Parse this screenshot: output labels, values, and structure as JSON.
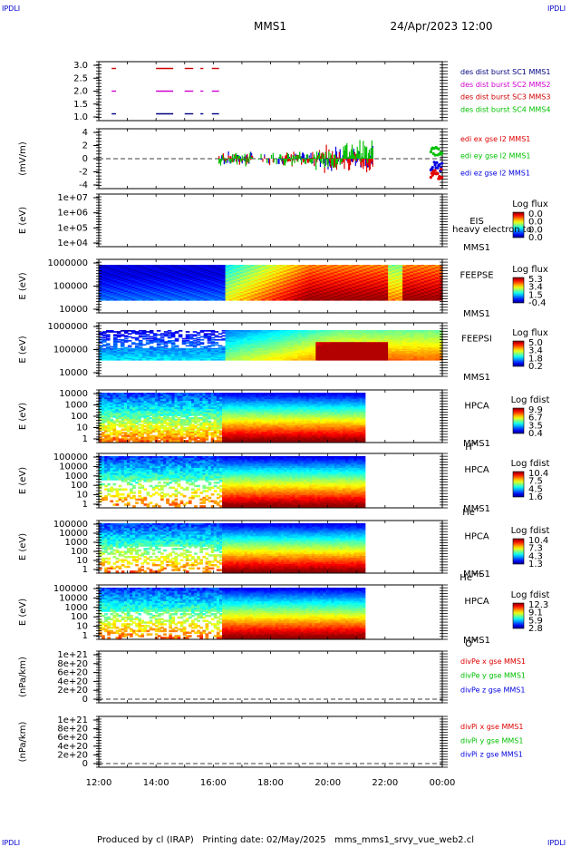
{
  "header": {
    "corner_left": "IPDLI",
    "corner_right": "IPDLI",
    "mission": "MMS1",
    "datetime": "24/Apr/2023 12:00"
  },
  "footer": {
    "corner_left": "IPDLI",
    "corner_right": "IPDLI",
    "text": "Produced by cl (IRAP)   Printing date: 02/May/2025   mms_mms1_srvy_vue_web2.cl"
  },
  "colors": {
    "c1": "#000080",
    "c2": "#d000d0",
    "c3": "#d00000",
    "c4": "#00c000",
    "ex": "#e00000",
    "ey": "#00c000",
    "ez": "#0000e0"
  },
  "chart_data": [
    {
      "id": "burst",
      "type": "line",
      "y_ticks": [
        "3.0",
        "2.5",
        "2.0",
        "1.5",
        "1.0"
      ],
      "ylim": [
        0.7,
        3.3
      ],
      "legend": [
        {
          "text": "des dist burst SC1 MMS1",
          "color": "c1"
        },
        {
          "text": "des dist burst SC2 MMS2",
          "color": "c2"
        },
        {
          "text": "des dist burst SC3 MMS3",
          "color": "c3"
        },
        {
          "text": "des dist burst SC4 MMS4",
          "color": "c4"
        }
      ],
      "segments_hours": [
        [
          12.45,
          12.6
        ],
        [
          14.0,
          14.6
        ],
        [
          15.0,
          15.3
        ],
        [
          15.55,
          15.65
        ],
        [
          15.95,
          16.2
        ]
      ],
      "levels": [
        3.0,
        2.0,
        1.0
      ],
      "level_colors": [
        "c3",
        "c2",
        "c1"
      ]
    },
    {
      "id": "efield",
      "type": "line",
      "ylabel": "(mV/m)",
      "y_ticks": [
        "4",
        "2",
        "0",
        "-2",
        "-4"
      ],
      "ylim": [
        -4.5,
        4.5
      ],
      "legend": [
        {
          "text": "edi ex gse l2 MMS1",
          "color": "ex"
        },
        {
          "text": "edi ey gse l2 MMS1",
          "color": "ey"
        },
        {
          "text": "edi ez gse l2 MMS1",
          "color": "ez"
        }
      ],
      "data_start_hour": 16.2,
      "data_end_hour": 21.6
    },
    {
      "id": "eis",
      "type": "heatmap",
      "ylabel": "E (eV)",
      "y_ticks": [
        "1e+07",
        "1e+06",
        "1e+05",
        "1e+04"
      ],
      "instrument": "EIS",
      "species": "heavy electron to",
      "mission": "MMS1",
      "cbar_title": "Log flux",
      "cbar_ticks": [
        "0.0",
        "0.0",
        "0.0",
        "0.0"
      ]
    },
    {
      "id": "feepse",
      "type": "heatmap",
      "ylabel": "E (eV)",
      "y_ticks": [
        "1000000",
        "100000",
        "10000"
      ],
      "instrument": "FEEPSE",
      "mission": "MMS1",
      "cbar_title": "Log flux",
      "cbar_ticks": [
        "5.3",
        "3.4",
        "1.5",
        "-0.4"
      ]
    },
    {
      "id": "feepsi",
      "type": "heatmap",
      "ylabel": "E (eV)",
      "y_ticks": [
        "1000000",
        "100000",
        "10000"
      ],
      "instrument": "FEEPSI",
      "mission": "MMS1",
      "cbar_title": "Log flux",
      "cbar_ticks": [
        "5.0",
        "3.4",
        "1.8",
        "0.2"
      ]
    },
    {
      "id": "hpca_h",
      "type": "heatmap",
      "ylabel": "E (eV)",
      "y_ticks": [
        "10000",
        "1000",
        "100",
        "10",
        "1"
      ],
      "instrument": "HPCA",
      "mission": "MMS1",
      "species": "H",
      "species_sup": "+",
      "cbar_title": "Log fdist",
      "cbar_ticks": [
        "9.9",
        "6.7",
        "3.5",
        "0.4"
      ]
    },
    {
      "id": "hpca_he",
      "type": "heatmap",
      "ylabel": "E (eV)",
      "y_ticks": [
        "100000",
        "10000",
        "1000",
        "100",
        "10",
        "1"
      ],
      "instrument": "HPCA",
      "mission": "MMS1",
      "species": "He",
      "species_sup": "+",
      "cbar_title": "Log fdist",
      "cbar_ticks": [
        "10.4",
        "7.5",
        "4.5",
        "1.6"
      ]
    },
    {
      "id": "hpca_hepp",
      "type": "heatmap",
      "ylabel": "E (eV)",
      "y_ticks": [
        "100000",
        "10000",
        "1000",
        "100",
        "10",
        "1"
      ],
      "instrument": "HPCA",
      "mission": "MMS1",
      "species": "He",
      "species_sup": "++",
      "cbar_title": "Log fdist",
      "cbar_ticks": [
        "10.4",
        "7.3",
        "4.3",
        "1.3"
      ]
    },
    {
      "id": "hpca_o",
      "type": "heatmap",
      "ylabel": "E (eV)",
      "y_ticks": [
        "100000",
        "10000",
        "1000",
        "100",
        "10",
        "1"
      ],
      "instrument": "HPCA",
      "mission": "MMS1",
      "species": "O",
      "species_sup": "+",
      "cbar_title": "Log fdist",
      "cbar_ticks": [
        "12.3",
        "9.1",
        "5.9",
        "2.8"
      ]
    },
    {
      "id": "divpe",
      "type": "line",
      "ylabel": "(nPa/km)",
      "y_ticks": [
        "1e+21",
        "8e+20",
        "6e+20",
        "4e+20",
        "2e+20",
        "0"
      ],
      "legend": [
        {
          "text": "divPe x gse MMS1",
          "color": "ex"
        },
        {
          "text": "divPe y gse MMS1",
          "color": "ey"
        },
        {
          "text": "divPe z gse MMS1",
          "color": "ez"
        }
      ]
    },
    {
      "id": "divpi",
      "type": "line",
      "ylabel": "(nPa/km)",
      "y_ticks": [
        "1e+21",
        "8e+20",
        "6e+20",
        "4e+20",
        "2e+20",
        "0"
      ],
      "legend": [
        {
          "text": "divPi x gse MMS1",
          "color": "ex"
        },
        {
          "text": "divPi y gse MMS1",
          "color": "ey"
        },
        {
          "text": "divPi z gse MMS1",
          "color": "ez"
        }
      ]
    }
  ],
  "time_axis": {
    "ticks": [
      "12:00",
      "14:00",
      "16:00",
      "18:00",
      "20:00",
      "22:00",
      "00:00"
    ],
    "start_hour": 12,
    "end_hour": 24,
    "hpca_end_hour": 21.3
  }
}
